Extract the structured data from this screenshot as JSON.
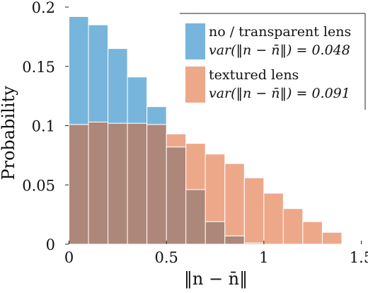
{
  "chart_data": {
    "type": "bar",
    "bins": [
      0.0,
      0.1,
      0.2,
      0.3,
      0.4,
      0.5,
      0.6,
      0.7,
      0.8,
      0.9,
      1.0,
      1.1,
      1.2,
      1.3
    ],
    "bin_width": 0.1,
    "series": [
      {
        "name": "no / transparent lens",
        "stat": "var(‖n − n̄‖) = 0.048",
        "color": "#77b5dc",
        "values": [
          0.192,
          0.185,
          0.165,
          0.141,
          0.116,
          0.082,
          0.046,
          0.019,
          0.007,
          0.001,
          0.0,
          0.0,
          0.0,
          0.0
        ]
      },
      {
        "name": "textured lens",
        "stat": "var(‖n − n̄‖) = 0.091",
        "color": "#eda88a",
        "values": [
          0.101,
          0.103,
          0.102,
          0.102,
          0.101,
          0.093,
          0.085,
          0.076,
          0.068,
          0.056,
          0.043,
          0.03,
          0.019,
          0.01
        ]
      }
    ],
    "overlap_color": "#ad8779",
    "xlabel": "‖n − n̄‖",
    "ylabel": "Probability",
    "xlim": [
      -0.02,
      1.52
    ],
    "ylim": [
      0,
      0.2
    ],
    "xticks": [
      0,
      0.5,
      1,
      1.5
    ],
    "xtick_labels": [
      "0",
      "0.5",
      "1",
      "1.5"
    ],
    "yticks": [
      0,
      0.05,
      0.1,
      0.15,
      0.2
    ],
    "ytick_labels": [
      "0",
      "0.05",
      "0.1",
      "0.15",
      "0.2"
    ],
    "legend_position": "top-right",
    "grid": false
  }
}
